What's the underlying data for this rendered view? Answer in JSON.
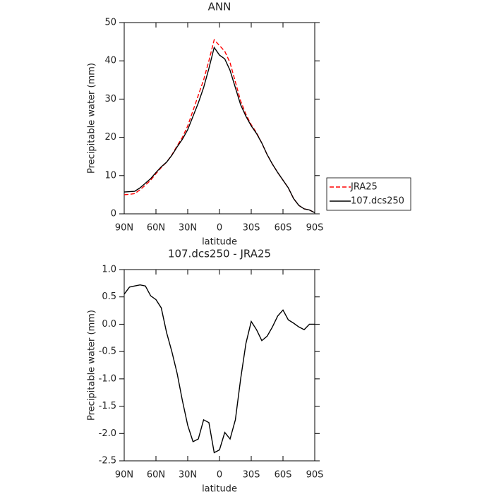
{
  "chart_data": [
    {
      "type": "line",
      "title": "ANN",
      "x_label": "latitude",
      "y_label": "Precipitable water (mm)",
      "x": [
        90,
        85,
        80,
        75,
        70,
        65,
        60,
        55,
        50,
        45,
        40,
        35,
        30,
        25,
        20,
        15,
        10,
        5,
        0,
        -5,
        -10,
        -15,
        -20,
        -25,
        -30,
        -35,
        -40,
        -45,
        -50,
        -55,
        -60,
        -65,
        -70,
        -75,
        -80,
        -85,
        -90
      ],
      "xlim": [
        90,
        -90
      ],
      "xticks": [
        {
          "value": 90,
          "label": "90N"
        },
        {
          "value": 60,
          "label": "60N"
        },
        {
          "value": 30,
          "label": "30N"
        },
        0,
        {
          "value": -30,
          "label": "30S"
        },
        {
          "value": -60,
          "label": "60S"
        },
        {
          "value": -90,
          "label": "90S"
        }
      ],
      "ylim": [
        0,
        50
      ],
      "yticks": [
        0,
        10,
        20,
        30,
        40,
        50
      ],
      "grid": false,
      "legend": "right",
      "series": [
        {
          "name": "JRA25",
          "color": "#ff0000",
          "style": "dashed",
          "values": [
            5.0,
            5.1,
            5.3,
            6.3,
            7.5,
            8.8,
            10.5,
            12.1,
            13.5,
            15.4,
            17.8,
            20.0,
            23.0,
            27.0,
            31.0,
            35.0,
            40.0,
            45.5,
            44.0,
            42.5,
            39.5,
            34.5,
            29.5,
            26.0,
            23.3,
            21.2,
            18.5,
            15.5,
            13.0,
            10.8,
            8.8,
            6.8,
            4.0,
            2.2,
            1.3,
            1.0,
            0.3
          ]
        },
        {
          "name": "107.dcs250",
          "color": "#000000",
          "style": "solid",
          "values": [
            5.7,
            5.8,
            5.9,
            6.8,
            8.0,
            9.2,
            10.8,
            12.3,
            13.5,
            15.3,
            17.5,
            19.5,
            22.0,
            25.5,
            29.0,
            33.0,
            38.0,
            43.5,
            41.5,
            40.5,
            37.5,
            33.0,
            28.5,
            25.5,
            23.0,
            21.0,
            18.5,
            15.5,
            13.0,
            10.8,
            8.8,
            6.8,
            4.0,
            2.2,
            1.3,
            1.0,
            0.3
          ]
        }
      ]
    },
    {
      "type": "line",
      "title": "107.dcs250 - JRA25",
      "x_label": "latitude",
      "y_label": "Precipitable water (mm)",
      "x": [
        90,
        85,
        80,
        75,
        70,
        65,
        60,
        55,
        50,
        45,
        40,
        35,
        30,
        25,
        20,
        15,
        10,
        5,
        0,
        -5,
        -10,
        -15,
        -20,
        -25,
        -30,
        -35,
        -40,
        -45,
        -50,
        -55,
        -60,
        -65,
        -70,
        -75,
        -80,
        -85,
        -90
      ],
      "xlim": [
        90,
        -90
      ],
      "xticks": [
        {
          "value": 90,
          "label": "90N"
        },
        {
          "value": 60,
          "label": "60N"
        },
        {
          "value": 30,
          "label": "30N"
        },
        0,
        {
          "value": -30,
          "label": "30S"
        },
        {
          "value": -60,
          "label": "60S"
        },
        {
          "value": -90,
          "label": "90S"
        }
      ],
      "ylim": [
        -2.5,
        1.0
      ],
      "yticks": [
        -2.5,
        {
          "value": -2,
          "label": "-2.0"
        },
        -1.5,
        {
          "value": -1,
          "label": "-1.0"
        },
        -0.5,
        {
          "value": 0,
          "label": "0.0"
        },
        0.5,
        {
          "value": 1,
          "label": "1.0"
        }
      ],
      "grid": false,
      "color": "#000000",
      "values": [
        0.55,
        0.68,
        0.7,
        0.72,
        0.7,
        0.52,
        0.45,
        0.3,
        -0.15,
        -0.5,
        -0.9,
        -1.4,
        -1.85,
        -2.15,
        -2.1,
        -1.75,
        -1.8,
        -2.35,
        -2.3,
        -1.98,
        -2.1,
        -1.75,
        -1.0,
        -0.35,
        0.05,
        -0.1,
        -0.3,
        -0.22,
        -0.05,
        0.15,
        0.26,
        0.08,
        0.02,
        -0.05,
        -0.1,
        0.0,
        0.0
      ]
    }
  ]
}
